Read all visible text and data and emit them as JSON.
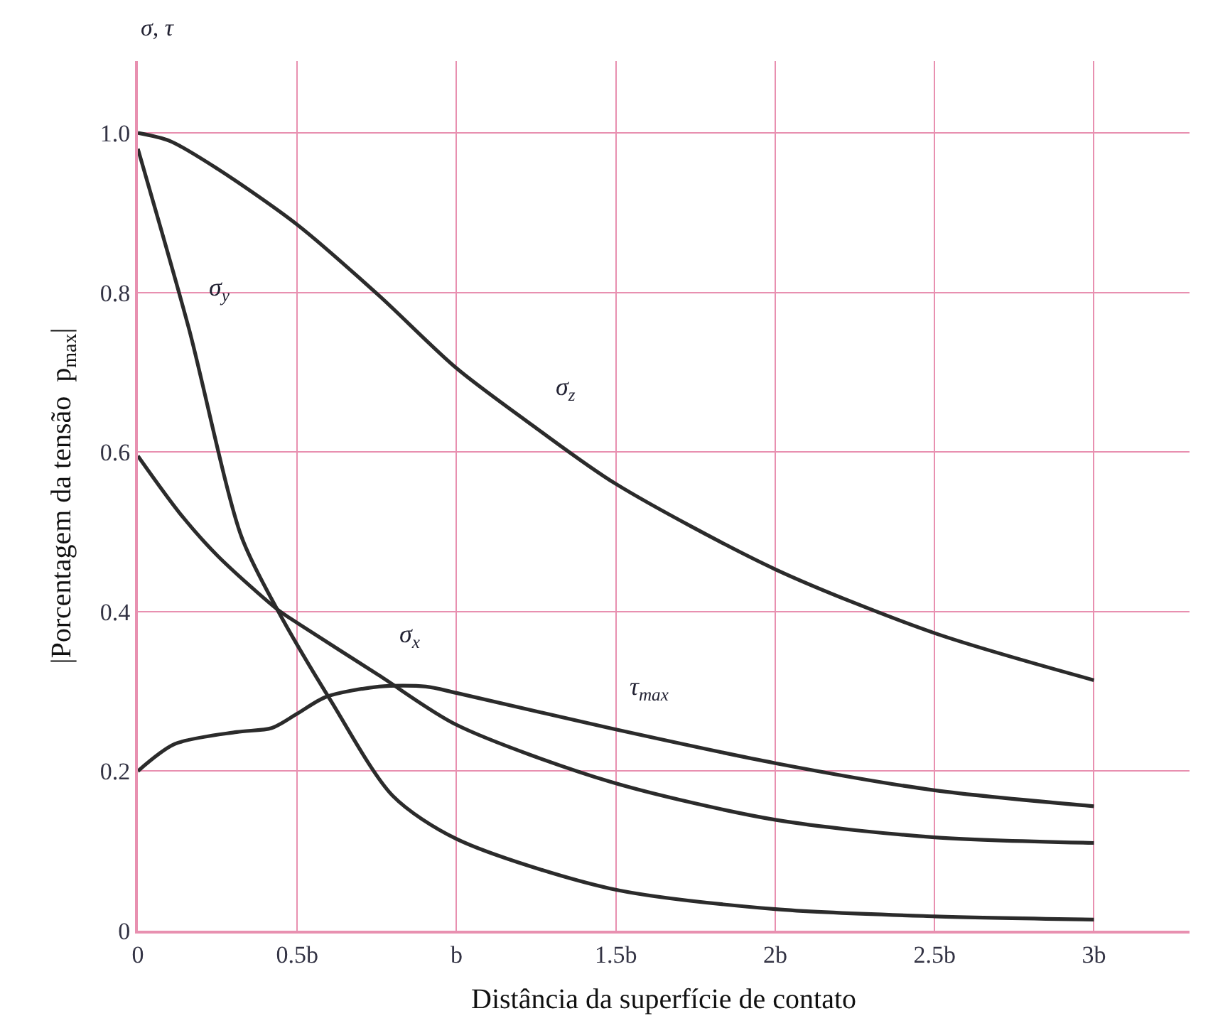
{
  "chart_data": {
    "type": "line",
    "xlabel": "Distância da superfície de contato",
    "ylabel": "|Porcentagem da tensão  p$_{max}$|",
    "xlim": [
      0,
      3.3
    ],
    "ylim": [
      0,
      1.09
    ],
    "xticks": [
      0,
      {
        "value": 0.5,
        "label": "0.5b"
      },
      {
        "value": 1,
        "label": "b"
      },
      {
        "value": 1.5,
        "label": "1.5b"
      },
      {
        "value": 2,
        "label": "2b"
      },
      {
        "value": 2.5,
        "label": "2.5b"
      },
      {
        "value": 3,
        "label": "3b"
      }
    ],
    "yticks": [
      0,
      0.2,
      0.4,
      0.6,
      0.8,
      {
        "value": 1,
        "label": "1.0"
      }
    ],
    "grid": true,
    "legend": false,
    "marker": "none",
    "line_style": "solid",
    "series": [
      {
        "color": "#2b2b2b",
        "x": [
          0,
          0.1,
          0.25,
          0.5,
          0.757,
          1,
          1.25,
          1.5,
          2,
          2.5,
          3
        ],
        "values": [
          1.0,
          0.99,
          0.955,
          0.885,
          0.796,
          0.705,
          0.63,
          0.56,
          0.453,
          0.373,
          0.314
        ]
      },
      {
        "color": "#2b2b2b",
        "x": [
          0,
          0.16,
          0.325,
          0.437,
          0.606,
          0.8,
          1,
          1.48,
          2,
          2.5,
          3
        ],
        "values": [
          0.98,
          0.755,
          0.494,
          0.403,
          0.288,
          0.169,
          0.115,
          0.053,
          0.027,
          0.018,
          0.014
        ]
      },
      {
        "color": "#2b2b2b",
        "x": [
          0,
          0.13,
          0.25,
          0.437,
          0.503,
          0.757,
          1,
          1.48,
          2,
          2.5,
          3
        ],
        "values": [
          0.595,
          0.524,
          0.47,
          0.403,
          0.385,
          0.32,
          0.258,
          0.187,
          0.139,
          0.117,
          0.11
        ]
      },
      {
        "color": "#2b2b2b",
        "x": [
          0,
          0.116,
          0.31,
          0.42,
          0.5,
          0.59,
          0.757,
          0.904,
          1,
          1.48,
          2,
          2.5,
          3
        ],
        "values": [
          0.2,
          0.234,
          0.249,
          0.254,
          0.272,
          0.293,
          0.306,
          0.306,
          0.298,
          0.254,
          0.21,
          0.176,
          0.156
        ]
      }
    ],
    "annotations": [
      {
        "text": "σ, τ"
      },
      {
        "text": "σ$_{z}$",
        "x": 1.25,
        "y": 0.63
      },
      {
        "text": "σ$_{y}$",
        "x": 0.16,
        "y": 0.755
      },
      {
        "text": "σ$_{x}$",
        "x": 0.757,
        "y": 0.32
      },
      {
        "text": "τ$_{max}$",
        "x": 1.48,
        "y": 0.254
      }
    ]
  }
}
